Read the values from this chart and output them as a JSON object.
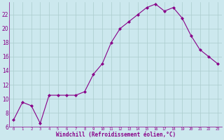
{
  "x": [
    0,
    1,
    2,
    3,
    4,
    5,
    6,
    7,
    8,
    9,
    10,
    11,
    12,
    13,
    14,
    15,
    16,
    17,
    18,
    19,
    20,
    21,
    22,
    23
  ],
  "y": [
    7,
    9.5,
    9,
    6.5,
    10.5,
    10.5,
    10.5,
    10.5,
    11,
    13.5,
    15,
    18,
    20,
    21,
    22,
    23,
    23.5,
    22.5,
    23,
    21.5,
    19,
    17,
    16,
    15
  ],
  "line_color": "#880088",
  "marker": "D",
  "marker_size": 2,
  "bg_color": "#cce8ee",
  "grid_color": "#aacccc",
  "xlabel": "Windchill (Refroidissement éolien,°C)",
  "xlabel_color": "#880088",
  "tick_color": "#880088",
  "ylim": [
    6,
    23.8
  ],
  "xlim": [
    -0.5,
    23.5
  ],
  "yticks": [
    6,
    8,
    10,
    12,
    14,
    16,
    18,
    20,
    22
  ],
  "xticks": [
    0,
    1,
    2,
    3,
    4,
    5,
    6,
    7,
    8,
    9,
    10,
    11,
    12,
    13,
    14,
    15,
    16,
    17,
    18,
    19,
    20,
    21,
    22,
    23
  ],
  "spine_color": "#880088"
}
